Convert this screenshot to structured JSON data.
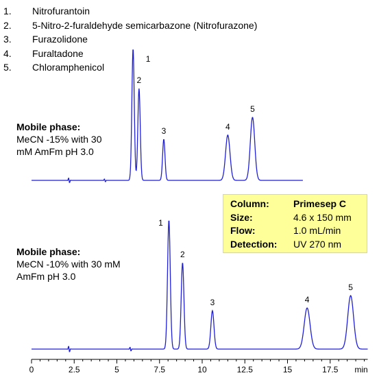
{
  "legend": [
    {
      "num": "1.",
      "name": "Nitrofurantoin"
    },
    {
      "num": "2.",
      "name": "5-Nitro-2-furaldehyde semicarbazone (Nitrofurazone)"
    },
    {
      "num": "3.",
      "name": "Furazolidone"
    },
    {
      "num": "4.",
      "name": "Furaltadone"
    },
    {
      "num": "5.",
      "name": "Chloramphenicol"
    }
  ],
  "mobile_phase_1": {
    "heading": "Mobile phase:",
    "line1": "MeCN -15% with 30",
    "line2": "mM AmFm pH 3.0"
  },
  "mobile_phase_2": {
    "heading": "Mobile phase:",
    "line1": "MeCN -10% with 30 mM",
    "line2": "AmFm pH 3.0"
  },
  "conditions": [
    {
      "key": "Column:",
      "value": "Primesep C"
    },
    {
      "key": "Size:",
      "value": "4.6 x 150 mm"
    },
    {
      "key": "Flow:",
      "value": "1.0 mL/min"
    },
    {
      "key": "Detection:",
      "value": "UV 270 nm"
    }
  ],
  "colors": {
    "trace": "#1f1fd6",
    "box": "#ffff99"
  },
  "chart_data": {
    "type": "line",
    "x_unit": "min",
    "xlim": [
      0,
      19.7
    ],
    "x_ticks": [
      0,
      2.5,
      5,
      7.5,
      10,
      12.5,
      15,
      17.5
    ],
    "x_tick_labels": [
      "0",
      "2.5",
      "5",
      "7.5",
      "10",
      "12.5",
      "15",
      "17.5"
    ],
    "series": [
      {
        "x_end": 15.9,
        "peaks": [
          {
            "label": "1",
            "t": 5.95,
            "h": 0.96,
            "w": 0.07
          },
          {
            "label": "2",
            "t": 6.3,
            "h": 0.67,
            "w": 0.07
          },
          {
            "label": "3",
            "t": 7.75,
            "h": 0.3,
            "w": 0.07
          },
          {
            "label": "4",
            "t": 11.5,
            "h": 0.33,
            "w": 0.13
          },
          {
            "label": "5",
            "t": 12.95,
            "h": 0.46,
            "w": 0.13
          }
        ]
      },
      {
        "x_end": 19.7,
        "peaks": [
          {
            "label": "1",
            "t": 8.05,
            "h": 0.94,
            "w": 0.08
          },
          {
            "label": "2",
            "t": 8.85,
            "h": 0.63,
            "w": 0.08
          },
          {
            "label": "3",
            "t": 10.6,
            "h": 0.28,
            "w": 0.09
          },
          {
            "label": "4",
            "t": 16.15,
            "h": 0.3,
            "w": 0.17
          },
          {
            "label": "5",
            "t": 18.7,
            "h": 0.39,
            "w": 0.17
          }
        ]
      }
    ]
  }
}
